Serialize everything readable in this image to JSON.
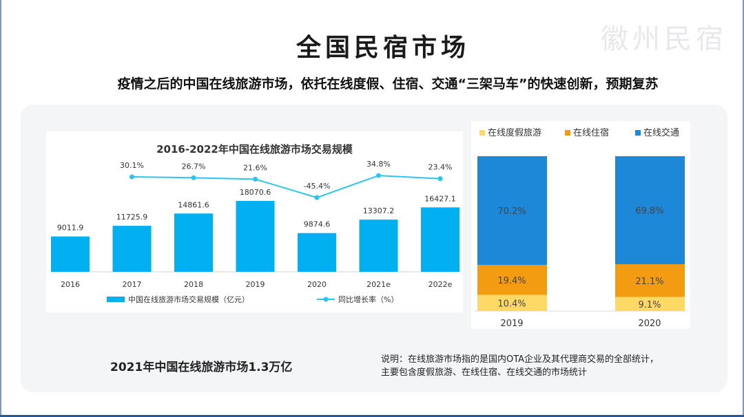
{
  "header": {
    "title": "全国民宿市场",
    "watermark": "徽州民宿",
    "subtitle": "疫情之后的中国在线旅游市场，依托在线度假、住宿、交通“三架马车”的快速创新，预期复苏"
  },
  "colors": {
    "bar": "#00b0f0",
    "line": "#29c5f0",
    "vacation": "#ffd966",
    "lodging": "#f39c12",
    "transport": "#1e88d8"
  },
  "chart_data": [
    {
      "type": "bar",
      "title": "2016-2022年中国在线旅游市场交易规模",
      "categories": [
        "2016",
        "2017",
        "2018",
        "2019",
        "2020",
        "2021e",
        "2022e"
      ],
      "series": [
        {
          "name": "中国在线旅游市场交易规模（亿元）",
          "type": "bar",
          "values": [
            9011.9,
            11725.9,
            14861.6,
            18070.6,
            9874.6,
            13307.2,
            16427.1
          ],
          "labels": [
            "9011.9",
            "11725.9",
            "14861.6",
            "18070.6",
            "9874.6",
            "13307.2",
            "16427.1"
          ]
        },
        {
          "name": "同比增长率（%）",
          "type": "line",
          "values": [
            null,
            30.1,
            26.7,
            21.6,
            -45.4,
            34.8,
            23.4
          ],
          "labels": [
            "",
            "30.1%",
            "26.7%",
            "21.6%",
            "-45.4%",
            "34.8%",
            "23.4%"
          ]
        }
      ],
      "ylim": [
        0,
        20000
      ],
      "legend": "bottom"
    },
    {
      "type": "bar",
      "stacked": true,
      "categories": [
        "2019",
        "2020"
      ],
      "series": [
        {
          "name": "在线度假旅游",
          "values": [
            10.4,
            9.1
          ],
          "labels": [
            "10.4%",
            "9.1%"
          ]
        },
        {
          "name": "在线住宿",
          "values": [
            19.4,
            21.1
          ],
          "labels": [
            "19.4%",
            "21.1%"
          ]
        },
        {
          "name": "在线交通",
          "values": [
            70.2,
            69.8
          ],
          "labels": [
            "70.2%",
            "69.8%"
          ]
        }
      ],
      "ylim": [
        0,
        100
      ],
      "legend": "top"
    }
  ],
  "footer": {
    "conclusion": "2021年中国在线旅游市场1.3万亿",
    "note_line1": "说明：在线旅游市场指的是国内OTA企业及其代理商交易的全部统计，",
    "note_line2": "主要包含度假旅游、在线住宿、在线交通的市场统计"
  }
}
